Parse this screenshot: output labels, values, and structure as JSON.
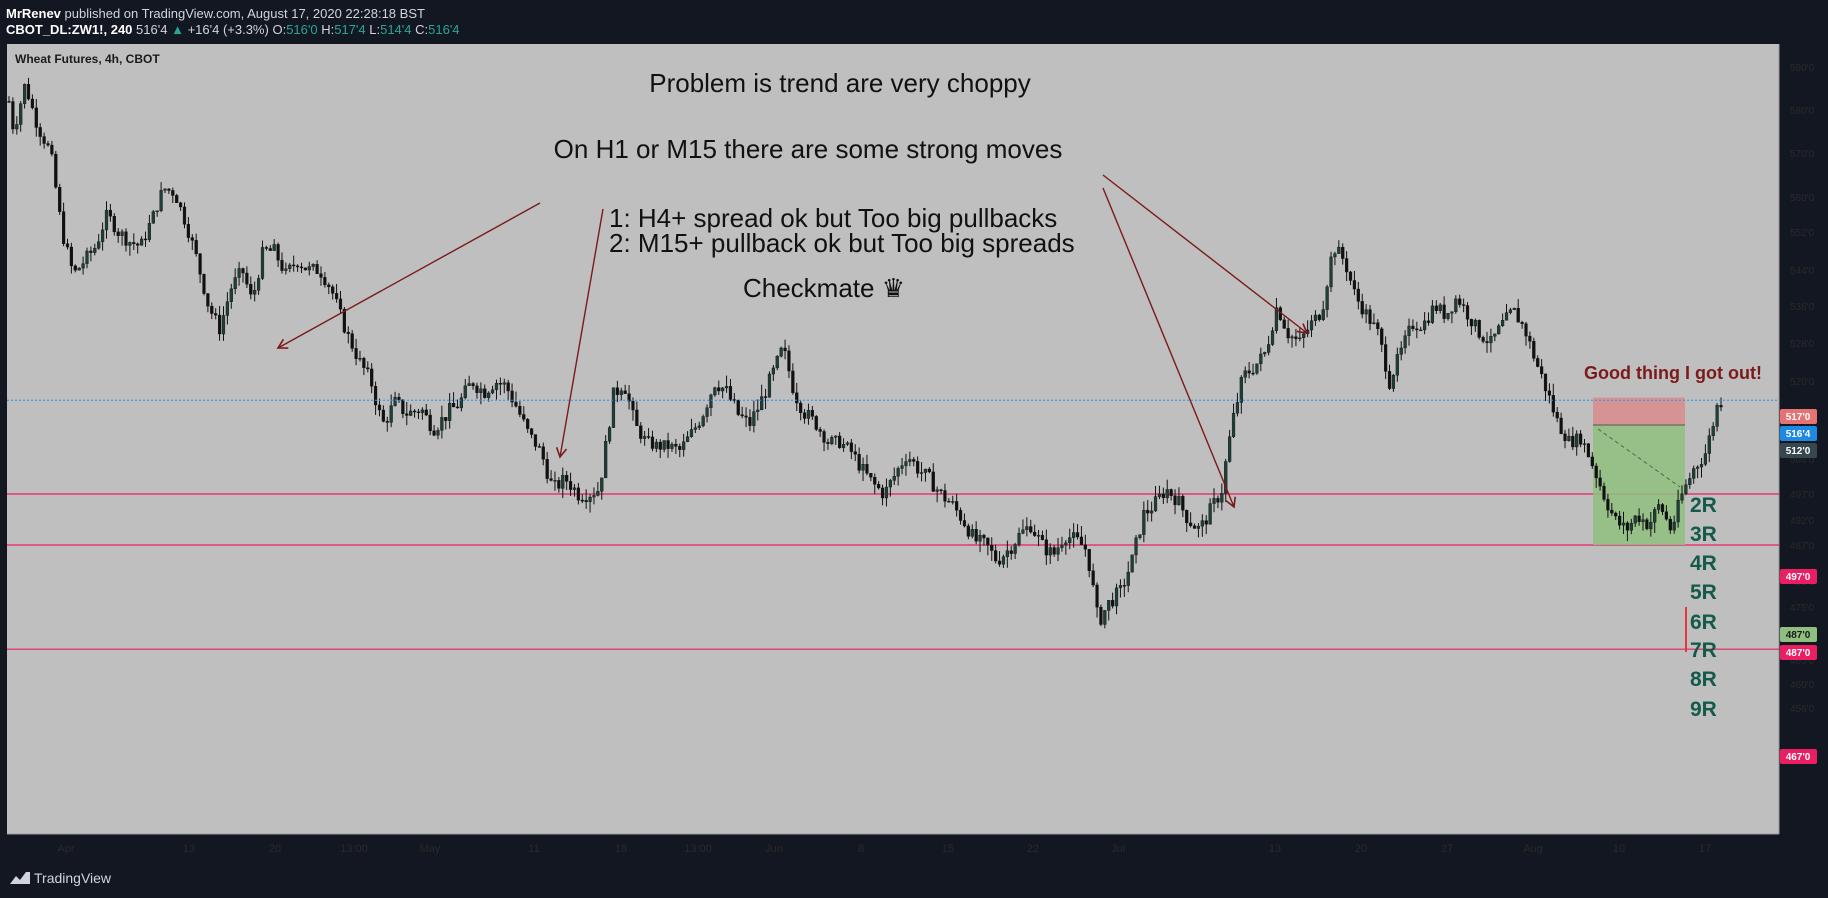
{
  "header": {
    "author": "MrRenev",
    "published": " published on TradingView.com, August 17, 2020 22:28:18 BST",
    "symbol": "CBOT_DL:ZW1!, 240",
    "last": "516'4",
    "change": "+16'4 (+3.3%)",
    "o_label": "O:",
    "o_val": "516'0",
    "h_label": "H:",
    "h_val": "517'4",
    "l_label": "L:",
    "l_val": "514'4",
    "c_label": "C:",
    "c_val": "516'4"
  },
  "chart_title": "Wheat Futures, 4h, CBOT",
  "annotations": {
    "line1": "Problem is trend are very choppy",
    "line2": "On H1 or M15 there are some strong moves",
    "line3": "1: H4+ spread ok but Too big pullbacks",
    "line4": "2: M15+ pullback ok but Too big spreads",
    "line5": "Checkmate ♛",
    "good": "Good thing I got out!",
    "r_labels": [
      "2R",
      "3R",
      "4R",
      "5R",
      "6R",
      "7R",
      "8R",
      "9R"
    ]
  },
  "footer": {
    "brand": "TradingView"
  },
  "colors": {
    "background": "#bfbfbf",
    "up": "#26a69a",
    "down": "#ef5350",
    "hline": "#e91e63",
    "arrow": "#7b1a1a",
    "r_text": "#145a4a"
  },
  "chart_data": {
    "type": "candlestick",
    "title": "Wheat Futures, 4h, CBOT",
    "ylim": [
      454,
      594
    ],
    "y_ticks": [
      "590'0",
      "580'0",
      "570'0",
      "560'0",
      "552'0",
      "544'0",
      "536'0",
      "528'0",
      "520'0",
      "512'0",
      "504'0",
      "497'0",
      "492'0",
      "487'0",
      "480'0",
      "475'0",
      "470'0",
      "465'0",
      "460'0",
      "456'0"
    ],
    "x_ticks": [
      "Apr",
      "13",
      "20",
      "13:00",
      "May",
      "11",
      "18",
      "13:00",
      "Jun",
      "8",
      "15",
      "22",
      "Jul",
      "13",
      "20",
      "27",
      "Aug",
      "10",
      "17"
    ],
    "price_tags": [
      {
        "label": "517'0",
        "kind": "stop"
      },
      {
        "label": "516'4",
        "kind": "last"
      },
      {
        "label": "512'0",
        "kind": "entry"
      },
      {
        "label": "497'0",
        "kind": "level"
      },
      {
        "label": "487'0",
        "kind": "target"
      },
      {
        "label": "487'0",
        "kind": "level"
      },
      {
        "label": "467'0",
        "kind": "level"
      }
    ],
    "horizontal_levels": [
      497,
      487,
      467
    ],
    "last_price": 516.5,
    "path_points": [
      [
        0,
        582
      ],
      [
        0.3,
        575
      ],
      [
        1,
        586
      ],
      [
        1.8,
        576
      ],
      [
        2.6,
        570
      ],
      [
        3.3,
        552
      ],
      [
        4,
        543
      ],
      [
        4.7,
        546
      ],
      [
        5.4,
        549
      ],
      [
        6.1,
        556
      ],
      [
        6.8,
        552
      ],
      [
        7.5,
        550
      ],
      [
        8.2,
        549
      ],
      [
        8.9,
        555
      ],
      [
        9.6,
        562
      ],
      [
        10.3,
        561
      ],
      [
        11.0,
        554
      ],
      [
        11.7,
        546
      ],
      [
        12.4,
        536
      ],
      [
        13.1,
        531
      ],
      [
        13.8,
        540
      ],
      [
        14.5,
        544
      ],
      [
        15.1,
        537
      ],
      [
        15.8,
        548
      ],
      [
        16.5,
        548
      ],
      [
        17.2,
        543
      ],
      [
        17.9,
        546
      ],
      [
        18.6,
        544
      ],
      [
        19.3,
        544
      ],
      [
        20.0,
        540
      ],
      [
        21.0,
        530
      ],
      [
        21.8,
        524
      ],
      [
        22.5,
        520
      ],
      [
        23.2,
        512
      ],
      [
        24.0,
        516
      ],
      [
        24.8,
        514
      ],
      [
        25.6,
        515
      ],
      [
        26.4,
        511
      ],
      [
        27.2,
        514
      ],
      [
        28.0,
        516
      ],
      [
        28.8,
        520
      ],
      [
        29.5,
        518
      ],
      [
        30.2,
        520
      ],
      [
        30.9,
        519
      ],
      [
        31.6,
        515
      ],
      [
        32.3,
        510
      ],
      [
        33.0,
        506
      ],
      [
        33.8,
        498
      ],
      [
        34.6,
        500
      ],
      [
        35.4,
        497
      ],
      [
        36.0,
        497
      ],
      [
        36.7,
        498
      ],
      [
        37.5,
        517
      ],
      [
        38.2,
        520
      ],
      [
        38.9,
        512
      ],
      [
        39.6,
        508
      ],
      [
        40.3,
        507
      ],
      [
        41.0,
        507
      ],
      [
        41.7,
        506
      ],
      [
        42.4,
        510
      ],
      [
        43.1,
        514
      ],
      [
        43.9,
        520
      ],
      [
        44.6,
        518
      ],
      [
        45.3,
        514
      ],
      [
        46.0,
        512
      ],
      [
        46.7,
        516
      ],
      [
        47.4,
        521
      ],
      [
        48.1,
        527
      ],
      [
        48.8,
        518
      ],
      [
        49.5,
        514
      ],
      [
        50.2,
        512
      ],
      [
        50.9,
        508
      ],
      [
        51.6,
        508
      ],
      [
        52.3,
        506
      ],
      [
        53.0,
        502
      ],
      [
        53.7,
        499
      ],
      [
        54.4,
        497
      ],
      [
        55.1,
        501
      ],
      [
        55.8,
        505
      ],
      [
        56.5,
        502
      ],
      [
        57.2,
        500
      ],
      [
        57.9,
        497
      ],
      [
        58.6,
        495
      ],
      [
        59.3,
        492
      ],
      [
        60.0,
        488
      ],
      [
        60.7,
        487
      ],
      [
        61.4,
        484
      ],
      [
        62.1,
        486
      ],
      [
        62.8,
        489
      ],
      [
        63.5,
        491
      ],
      [
        64.2,
        487
      ],
      [
        64.9,
        485
      ],
      [
        65.6,
        489
      ],
      [
        66.3,
        488
      ],
      [
        67.0,
        486
      ],
      [
        67.7,
        472
      ],
      [
        68.4,
        476
      ],
      [
        69.1,
        478
      ],
      [
        69.8,
        484
      ],
      [
        70.5,
        493
      ],
      [
        71.2,
        495
      ],
      [
        71.9,
        498
      ],
      [
        72.6,
        496
      ],
      [
        73.3,
        492
      ],
      [
        74.0,
        490
      ],
      [
        74.7,
        494
      ],
      [
        75.4,
        498
      ],
      [
        76.0,
        512
      ],
      [
        76.7,
        521
      ],
      [
        77.4,
        523
      ],
      [
        78.1,
        526
      ],
      [
        78.8,
        536
      ],
      [
        79.5,
        530
      ],
      [
        80.2,
        528
      ],
      [
        80.9,
        532
      ],
      [
        81.6,
        535
      ],
      [
        82.3,
        549
      ],
      [
        83.0,
        546
      ],
      [
        83.7,
        538
      ],
      [
        84.4,
        534
      ],
      [
        85.1,
        530
      ],
      [
        85.8,
        520
      ],
      [
        86.5,
        526
      ],
      [
        87.2,
        532
      ],
      [
        87.9,
        532
      ],
      [
        88.6,
        536
      ],
      [
        89.3,
        534
      ],
      [
        90.0,
        538
      ],
      [
        90.7,
        534
      ],
      [
        91.4,
        530
      ],
      [
        92.1,
        528
      ],
      [
        92.8,
        532
      ],
      [
        93.5,
        535
      ],
      [
        94.2,
        531
      ],
      [
        94.9,
        524
      ],
      [
        95.6,
        518
      ],
      [
        96.3,
        512
      ],
      [
        97.0,
        508
      ],
      [
        97.7,
        509
      ],
      [
        98.4,
        503
      ],
      [
        99.1,
        497
      ],
      [
        99.8,
        492
      ],
      [
        100.5,
        490
      ],
      [
        101.2,
        493
      ],
      [
        101.9,
        491
      ],
      [
        102.6,
        495
      ],
      [
        103.3,
        490
      ],
      [
        104.0,
        497
      ],
      [
        104.7,
        502
      ],
      [
        105.4,
        505
      ],
      [
        106.1,
        515
      ],
      [
        106.4,
        516.5
      ]
    ],
    "trade_box": {
      "stop": 517,
      "entry": 512,
      "target": 487
    }
  }
}
